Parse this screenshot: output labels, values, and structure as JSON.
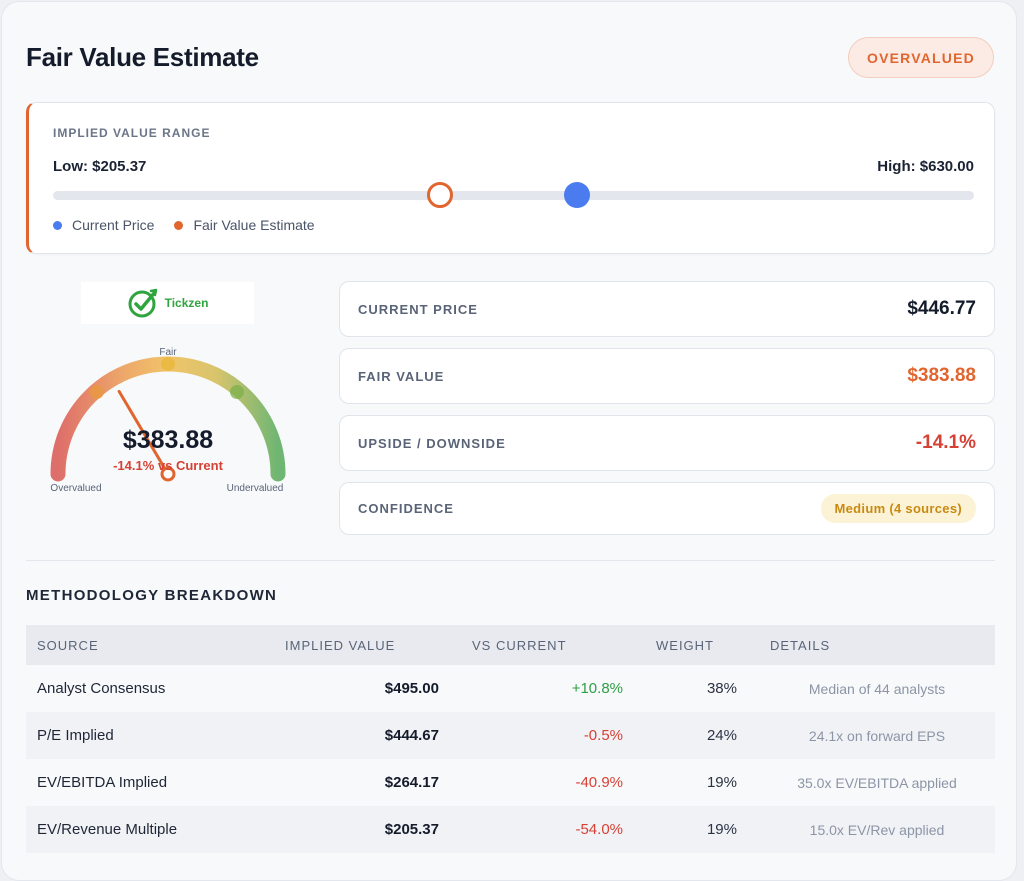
{
  "header": {
    "title": "Fair Value Estimate",
    "status_badge": "OVERVALUED"
  },
  "range": {
    "label": "IMPLIED VALUE RANGE",
    "low_text": "Low: $205.37",
    "high_text": "High: $630.00",
    "low": 205.37,
    "high": 630.0,
    "current_price": 446.77,
    "fair_value": 383.88,
    "legend": [
      {
        "label": "Current Price",
        "color": "#4a7cef"
      },
      {
        "label": "Fair Value Estimate",
        "color": "#e0652f"
      }
    ]
  },
  "logo": {
    "text": "Tickzen",
    "icon": "check-circle-icon"
  },
  "gauge": {
    "price": "$383.88",
    "sub": "-14.1% vs Current",
    "label_left": "Overvalued",
    "label_top": "Fair",
    "label_right": "Undervalued",
    "needle_fraction": 0.33
  },
  "stats": [
    {
      "label": "CURRENT PRICE",
      "value": "$446.77",
      "color": "#141b2b"
    },
    {
      "label": "FAIR VALUE",
      "value": "$383.88",
      "color": "#e0652f"
    },
    {
      "label": "UPSIDE / DOWNSIDE",
      "value": "-14.1%",
      "color": "#d64135"
    },
    {
      "label": "CONFIDENCE",
      "value": "Medium (4 sources)",
      "color": "#c98a12"
    }
  ],
  "methodology": {
    "title": "METHODOLOGY BREAKDOWN",
    "columns": [
      "SOURCE",
      "IMPLIED VALUE",
      "VS CURRENT",
      "WEIGHT",
      "DETAILS"
    ],
    "rows": [
      {
        "source": "Analyst Consensus",
        "implied": "$495.00",
        "vs": "+10.8%",
        "weight": "38%",
        "details": "Median of 44 analysts"
      },
      {
        "source": "P/E Implied",
        "implied": "$444.67",
        "vs": "-0.5%",
        "weight": "24%",
        "details": "24.1x on forward EPS"
      },
      {
        "source": "EV/EBITDA Implied",
        "implied": "$264.17",
        "vs": "-40.9%",
        "weight": "19%",
        "details": "35.0x EV/EBITDA applied"
      },
      {
        "source": "EV/Revenue Multiple",
        "implied": "$205.37",
        "vs": "-54.0%",
        "weight": "19%",
        "details": "15.0x EV/Rev applied"
      }
    ]
  }
}
